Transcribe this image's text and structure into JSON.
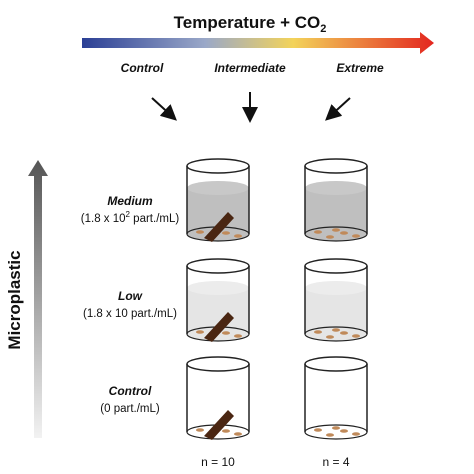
{
  "header": {
    "title": "Temperature + CO",
    "title_subscript": "2"
  },
  "columns": [
    "Control",
    "Intermediate",
    "Extreme"
  ],
  "y_axis_label": "Microplastic",
  "rows": [
    {
      "label": "Medium",
      "conc_before": "(1.8 x 10",
      "conc_sup": "2",
      "conc_after": " part./mL)"
    },
    {
      "label": "Low",
      "conc": "(1.8 x 10 part./mL)"
    },
    {
      "label": "Control",
      "conc": "(0 part./mL)"
    }
  ],
  "sample_sizes": [
    "n = 10",
    "n = 4"
  ]
}
